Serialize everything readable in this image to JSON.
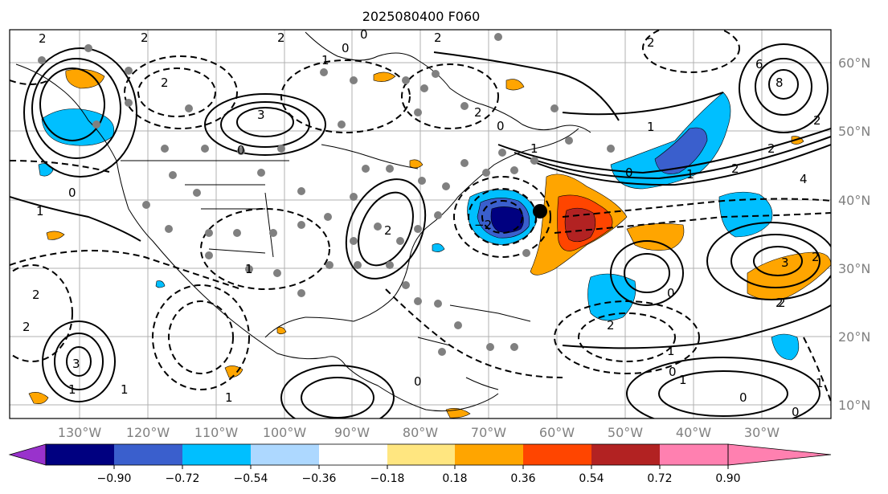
{
  "title": "2025080400 F060",
  "lat_labels": [
    "60°N",
    "50°N",
    "40°N",
    "30°N",
    "20°N",
    "10°N"
  ],
  "lon_labels": [
    "130°W",
    "120°W",
    "110°W",
    "100°W",
    "90°W",
    "80°W",
    "70°W",
    "60°W",
    "50°W",
    "40°W",
    "30°W"
  ],
  "colorbar": {
    "colors": [
      "#9932cc",
      "#000080",
      "#3a5fcd",
      "#00bfff",
      "#add8ff",
      "#ffffff",
      "#ffe680",
      "#ffa500",
      "#ff4500",
      "#b22222",
      "#ff80b0"
    ],
    "ticks": [
      "−0.90",
      "−0.72",
      "−0.54",
      "−0.36",
      "−0.18",
      "0.18",
      "0.36",
      "0.54",
      "0.72",
      "0.90"
    ]
  },
  "contour_labels": [
    "2",
    "2",
    "2",
    "0",
    "2",
    "2",
    "6",
    "8",
    "1",
    "2",
    "0",
    "3",
    "0",
    "1",
    "0",
    "1",
    "1",
    "2",
    "−2",
    "0",
    "2",
    "0",
    "1",
    "2",
    "4",
    "2",
    "3",
    "2",
    "1",
    "2",
    "0",
    "2",
    "3",
    "1",
    "2",
    "1",
    "1",
    "0",
    "0",
    "1",
    "0",
    "0",
    "2",
    "2",
    "1",
    "2",
    "1"
  ]
}
